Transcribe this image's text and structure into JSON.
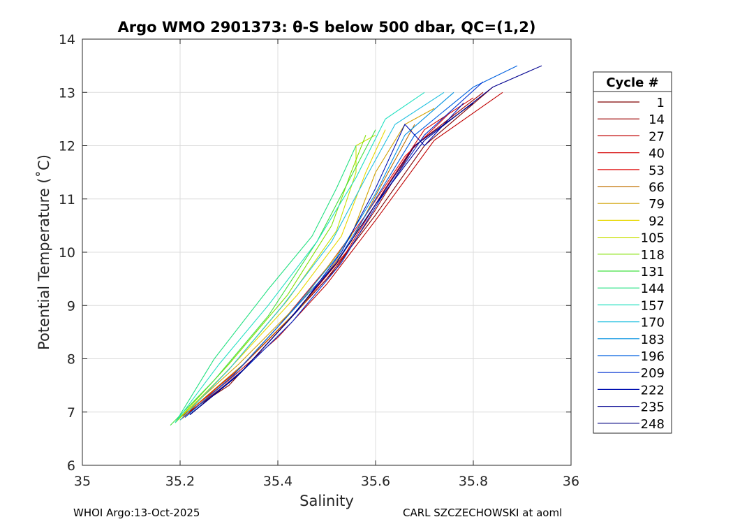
{
  "chart_data": {
    "type": "line",
    "title": "Argo WMO 2901373: θ-S below 500 dbar,  QC=(1,2)",
    "xlabel": "Salinity",
    "ylabel": "Potential Temperature (˚C)",
    "xlim": [
      35,
      36
    ],
    "ylim": [
      6,
      14
    ],
    "xticks": [
      "35",
      "35.2",
      "35.4",
      "35.6",
      "35.8",
      "36"
    ],
    "yticks": [
      "6",
      "7",
      "8",
      "9",
      "10",
      "11",
      "12",
      "13",
      "14"
    ],
    "grid": true,
    "legend": {
      "title": "Cycle #",
      "placement": "right-outside",
      "entries": [
        "1",
        "14",
        "27",
        "40",
        "53",
        "66",
        "79",
        "92",
        "105",
        "118",
        "131",
        "144",
        "157",
        "170",
        "183",
        "196",
        "209",
        "222",
        "235",
        "248"
      ],
      "colors": [
        "#7f0000",
        "#9e0000",
        "#c00000",
        "#d40000",
        "#e01010",
        "#c07000",
        "#d0a000",
        "#e8d800",
        "#c8e000",
        "#80e000",
        "#40e040",
        "#20e080",
        "#20e0c0",
        "#20c0e0",
        "#0090e0",
        "#0060e0",
        "#0030d0",
        "#0010b0",
        "#000090",
        "#000080"
      ]
    },
    "series": [
      {
        "points": [
          [
            35.2,
            6.9
          ],
          [
            35.3,
            7.5
          ],
          [
            35.4,
            8.5
          ],
          [
            35.5,
            9.5
          ],
          [
            35.6,
            10.7
          ],
          [
            35.7,
            12.0
          ],
          [
            35.84,
            13.1
          ]
        ]
      },
      {
        "points": [
          [
            35.22,
            7.0
          ],
          [
            35.32,
            7.7
          ],
          [
            35.42,
            8.7
          ],
          [
            35.52,
            9.7
          ],
          [
            35.6,
            10.8
          ],
          [
            35.68,
            12.0
          ],
          [
            35.82,
            13.0
          ]
        ]
      },
      {
        "points": [
          [
            35.2,
            6.85
          ],
          [
            35.3,
            7.6
          ],
          [
            35.4,
            8.4
          ],
          [
            35.5,
            9.4
          ],
          [
            35.6,
            10.6
          ],
          [
            35.72,
            12.1
          ],
          [
            35.86,
            13.0
          ]
        ]
      },
      {
        "points": [
          [
            35.21,
            6.95
          ],
          [
            35.32,
            7.8
          ],
          [
            35.44,
            8.9
          ],
          [
            35.54,
            10.0
          ],
          [
            35.62,
            11.2
          ],
          [
            35.7,
            12.3
          ],
          [
            35.8,
            12.9
          ]
        ]
      },
      {
        "points": [
          [
            35.2,
            6.9
          ],
          [
            35.3,
            7.6
          ],
          [
            35.4,
            8.6
          ],
          [
            35.5,
            9.7
          ],
          [
            35.58,
            10.7
          ],
          [
            35.66,
            11.8
          ],
          [
            35.75,
            12.6
          ]
        ]
      },
      {
        "points": [
          [
            35.21,
            6.95
          ],
          [
            35.33,
            7.9
          ],
          [
            35.45,
            9.0
          ],
          [
            35.55,
            10.2
          ],
          [
            35.62,
            11.4
          ],
          [
            35.68,
            12.4
          ]
        ]
      },
      {
        "points": [
          [
            35.2,
            6.9
          ],
          [
            35.32,
            7.9
          ],
          [
            35.45,
            9.1
          ],
          [
            35.55,
            10.3
          ],
          [
            35.6,
            11.5
          ],
          [
            35.66,
            12.4
          ],
          [
            35.72,
            12.7
          ]
        ]
      },
      {
        "points": [
          [
            35.2,
            6.85
          ],
          [
            35.32,
            8.0
          ],
          [
            35.44,
            9.2
          ],
          [
            35.53,
            10.3
          ],
          [
            35.58,
            11.5
          ],
          [
            35.62,
            12.3
          ]
        ]
      },
      {
        "points": [
          [
            35.19,
            6.8
          ],
          [
            35.3,
            7.8
          ],
          [
            35.42,
            9.1
          ],
          [
            35.52,
            10.4
          ],
          [
            35.56,
            11.5
          ],
          [
            35.56,
            12.0
          ],
          [
            35.6,
            12.2
          ]
        ]
      },
      {
        "points": [
          [
            35.19,
            6.8
          ],
          [
            35.3,
            7.9
          ],
          [
            35.42,
            9.2
          ],
          [
            35.51,
            10.5
          ],
          [
            35.55,
            11.5
          ],
          [
            35.58,
            12.2
          ]
        ]
      },
      {
        "points": [
          [
            35.18,
            6.75
          ],
          [
            35.27,
            7.6
          ],
          [
            35.38,
            8.8
          ],
          [
            35.48,
            10.2
          ],
          [
            35.56,
            11.6
          ],
          [
            35.6,
            12.3
          ]
        ]
      },
      {
        "points": [
          [
            35.19,
            6.8
          ],
          [
            35.27,
            8.0
          ],
          [
            35.38,
            9.3
          ],
          [
            35.47,
            10.3
          ],
          [
            35.52,
            11.2
          ],
          [
            35.56,
            12.0
          ]
        ]
      },
      {
        "points": [
          [
            35.19,
            6.8
          ],
          [
            35.28,
            7.9
          ],
          [
            35.38,
            9.0
          ],
          [
            35.48,
            10.2
          ],
          [
            35.56,
            11.4
          ],
          [
            35.62,
            12.5
          ],
          [
            35.7,
            13.0
          ]
        ]
      },
      {
        "points": [
          [
            35.2,
            6.85
          ],
          [
            35.3,
            7.8
          ],
          [
            35.41,
            9.0
          ],
          [
            35.51,
            10.2
          ],
          [
            35.58,
            11.4
          ],
          [
            35.64,
            12.4
          ],
          [
            35.74,
            13.0
          ]
        ]
      },
      {
        "points": [
          [
            35.21,
            6.9
          ],
          [
            35.31,
            7.7
          ],
          [
            35.42,
            8.8
          ],
          [
            35.52,
            9.9
          ],
          [
            35.6,
            11.1
          ],
          [
            35.66,
            12.2
          ],
          [
            35.76,
            13.0
          ]
        ]
      },
      {
        "points": [
          [
            35.21,
            6.9
          ],
          [
            35.31,
            7.7
          ],
          [
            35.42,
            8.8
          ],
          [
            35.52,
            9.8
          ],
          [
            35.6,
            11.0
          ],
          [
            35.68,
            12.2
          ],
          [
            35.8,
            13.1
          ],
          [
            35.89,
            13.5
          ]
        ]
      },
      {
        "points": [
          [
            35.22,
            6.95
          ],
          [
            35.32,
            7.7
          ],
          [
            35.43,
            8.7
          ],
          [
            35.53,
            9.8
          ],
          [
            35.61,
            11.0
          ],
          [
            35.7,
            12.2
          ],
          [
            35.82,
            13.2
          ]
        ]
      },
      {
        "points": [
          [
            35.22,
            6.95
          ],
          [
            35.33,
            7.8
          ],
          [
            35.44,
            8.9
          ],
          [
            35.53,
            10.0
          ],
          [
            35.6,
            11.2
          ],
          [
            35.66,
            12.4
          ],
          [
            35.7,
            12.0
          ],
          [
            35.78,
            12.8
          ]
        ]
      },
      {
        "points": [
          [
            35.22,
            6.95
          ],
          [
            35.32,
            7.7
          ],
          [
            35.42,
            8.7
          ],
          [
            35.52,
            9.8
          ],
          [
            35.6,
            10.9
          ],
          [
            35.7,
            12.1
          ],
          [
            35.84,
            13.1
          ],
          [
            35.94,
            13.5
          ]
        ]
      },
      {
        "points": [
          [
            35.22,
            6.95
          ],
          [
            35.32,
            7.7
          ],
          [
            35.42,
            8.7
          ],
          [
            35.52,
            9.8
          ],
          [
            35.6,
            10.9
          ],
          [
            35.68,
            12.0
          ],
          [
            35.8,
            12.8
          ]
        ]
      }
    ]
  },
  "footer": {
    "left": "WHOI Argo:13-Oct-2025",
    "right": "CARL SZCZECHOWSKI at aoml"
  }
}
